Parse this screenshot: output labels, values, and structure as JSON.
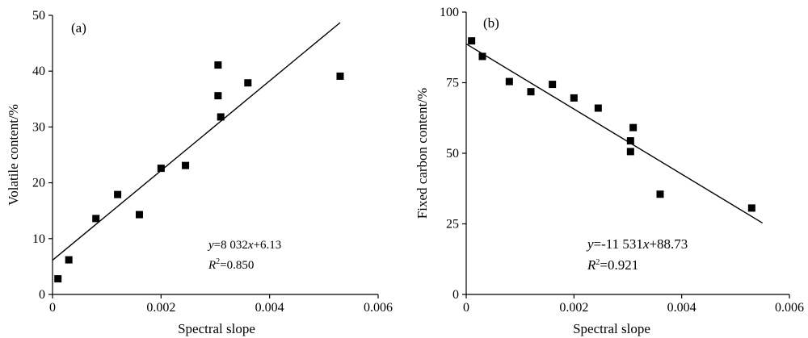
{
  "chart_data": [
    {
      "type": "scatter",
      "panel_label": "(a)",
      "xlabel": "Spectral slope",
      "ylabel": "Volatile content/%",
      "xlim": [
        0,
        0.006
      ],
      "ylim": [
        0,
        50
      ],
      "xticks": [
        "0",
        "0.002",
        "0.004",
        "0.006"
      ],
      "yticks": [
        "0",
        "10",
        "20",
        "30",
        "40",
        "50"
      ],
      "x": [
        0.0001,
        0.0003,
        0.0008,
        0.0012,
        0.0016,
        0.002,
        0.00245,
        0.00305,
        0.00305,
        0.0031,
        0.0036,
        0.0053
      ],
      "y": [
        2.8,
        6.2,
        13.6,
        17.9,
        14.3,
        22.6,
        23.1,
        41.1,
        35.6,
        31.8,
        37.9,
        39.1
      ],
      "fit": {
        "slope": 8032,
        "intercept": 6.13,
        "x_range": [
          0,
          0.0053
        ]
      },
      "equation_parts": {
        "y": "y",
        "eq": "=8 032",
        "x": "x",
        "rest": "+6.13"
      },
      "r2_parts": {
        "R": "R",
        "sup": "2",
        "rest": "=0.850"
      }
    },
    {
      "type": "scatter",
      "panel_label": "(b)",
      "xlabel": "Spectral slope",
      "ylabel": "Fixed carbon content/%",
      "xlim": [
        0,
        0.006
      ],
      "ylim": [
        0,
        100
      ],
      "xticks": [
        "0",
        "0.002",
        "0.004",
        "0.006"
      ],
      "yticks": [
        "0",
        "25",
        "50",
        "75",
        "100"
      ],
      "x": [
        0.0001,
        0.0003,
        0.0008,
        0.0012,
        0.0016,
        0.002,
        0.00245,
        0.0031,
        0.00305,
        0.00305,
        0.0036,
        0.0053
      ],
      "y": [
        89.8,
        84.3,
        75.4,
        71.8,
        74.4,
        69.6,
        66.0,
        59.1,
        54.4,
        50.6,
        35.5,
        30.6
      ],
      "fit": {
        "slope": -11531,
        "intercept": 88.73,
        "x_range": [
          0,
          0.0055
        ]
      },
      "equation_parts": {
        "y": "y",
        "eq": "=-11 531",
        "x": "x",
        "rest": "+88.73"
      },
      "r2_parts": {
        "R": "R",
        "sup": "2",
        "rest": "=0.921"
      }
    }
  ]
}
